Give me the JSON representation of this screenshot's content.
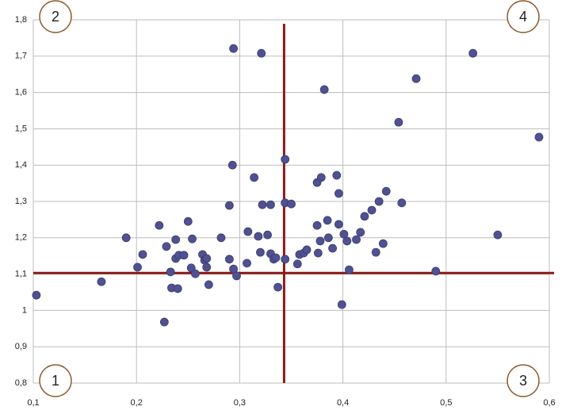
{
  "chart_data": {
    "type": "scatter",
    "x": [
      0.103,
      0.166,
      0.19,
      0.201,
      0.206,
      0.222,
      0.227,
      0.229,
      0.233,
      0.234,
      0.238,
      0.238,
      0.24,
      0.241,
      0.246,
      0.25,
      0.254,
      0.253,
      0.257,
      0.264,
      0.266,
      0.268,
      0.27,
      0.268,
      0.282,
      0.29,
      0.29,
      0.293,
      0.294,
      0.294,
      0.297,
      0.307,
      0.308,
      0.314,
      0.318,
      0.32,
      0.321,
      0.322,
      0.327,
      0.33,
      0.33,
      0.333,
      0.335,
      0.337,
      0.344,
      0.344,
      0.344,
      0.35,
      0.356,
      0.358,
      0.362,
      0.365,
      0.375,
      0.375,
      0.376,
      0.378,
      0.379,
      0.382,
      0.385,
      0.386,
      0.39,
      0.394,
      0.396,
      0.396,
      0.399,
      0.401,
      0.404,
      0.406,
      0.413,
      0.417,
      0.421,
      0.428,
      0.432,
      0.435,
      0.439,
      0.442,
      0.454,
      0.457,
      0.471,
      0.49,
      0.526,
      0.55,
      0.59
    ],
    "values": [
      1.042,
      1.079,
      1.2,
      1.119,
      1.154,
      1.234,
      0.968,
      1.176,
      1.106,
      1.062,
      1.195,
      1.143,
      1.06,
      1.152,
      1.152,
      1.245,
      1.197,
      1.117,
      1.101,
      1.154,
      1.138,
      1.119,
      1.071,
      1.143,
      1.2,
      1.289,
      1.141,
      1.4,
      1.114,
      1.721,
      1.095,
      1.13,
      1.217,
      1.366,
      1.204,
      1.16,
      1.708,
      1.291,
      1.208,
      1.291,
      1.156,
      1.141,
      1.145,
      1.064,
      1.416,
      1.141,
      1.296,
      1.293,
      1.128,
      1.154,
      1.158,
      1.167,
      1.352,
      1.234,
      1.158,
      1.191,
      1.366,
      1.608,
      1.248,
      1.2,
      1.171,
      1.372,
      1.322,
      1.237,
      1.016,
      1.21,
      1.191,
      1.112,
      1.195,
      1.215,
      1.259,
      1.276,
      1.16,
      1.3,
      1.184,
      1.328,
      1.518,
      1.296,
      1.638,
      1.108,
      1.708,
      1.208,
      1.477
    ],
    "color": "#4f5190",
    "xlim": [
      0.1,
      0.6
    ],
    "xticks": [
      {
        "value": 0.1,
        "label": "0,1"
      },
      {
        "value": 0.2,
        "label": "0,2"
      },
      {
        "value": 0.3,
        "label": "0,3"
      },
      {
        "value": 0.4,
        "label": "0,4"
      },
      {
        "value": 0.5,
        "label": "0,5"
      },
      {
        "value": 0.6,
        "label": "0,6"
      }
    ],
    "ylim": [
      0.8,
      1.8
    ],
    "yticks": [
      {
        "value": 0.8,
        "label": "0,8"
      },
      {
        "value": 0.9,
        "label": "0,9"
      },
      1,
      {
        "value": 1.1,
        "label": "1,1"
      },
      {
        "value": 1.2,
        "label": "1,2"
      },
      {
        "value": 1.3,
        "label": "1,3"
      },
      {
        "value": 1.4,
        "label": "1,4"
      },
      {
        "value": 1.5,
        "label": "1,5"
      },
      {
        "value": 1.6,
        "label": "1,6"
      },
      {
        "value": 1.7,
        "label": "1,7"
      },
      {
        "value": 1.8,
        "label": "1,8"
      }
    ],
    "grid": true,
    "divider_x": 0.343,
    "divider_y": 1.103,
    "divider_color": "#8b1a1a",
    "quadrants": [
      "1",
      "2",
      "3",
      "4"
    ]
  }
}
